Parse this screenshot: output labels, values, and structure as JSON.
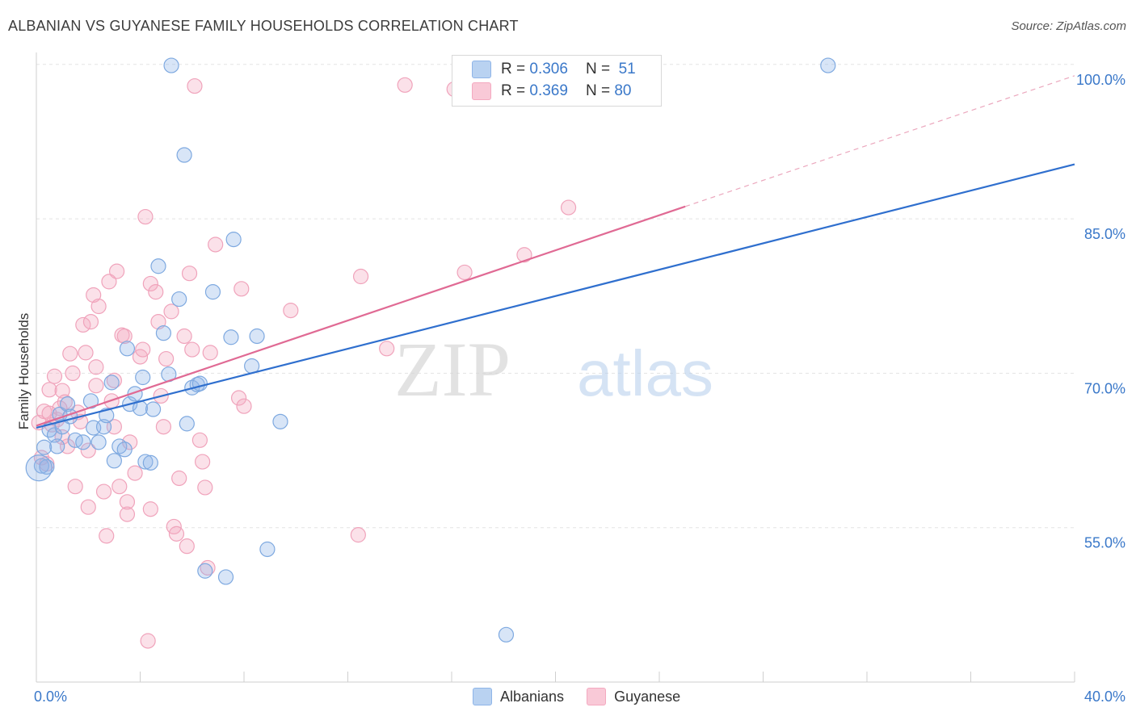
{
  "title": "ALBANIAN VS GUYANESE FAMILY HOUSEHOLDS CORRELATION CHART",
  "source": "Source: ZipAtlas.com",
  "watermark": {
    "zip": "ZIP",
    "atlas": "atlas"
  },
  "legend": {
    "rows": [
      {
        "r_label": "R =",
        "r_value": "0.306",
        "n_label": "N =",
        "n_value": "51"
      },
      {
        "r_label": "R =",
        "r_value": "0.369",
        "n_label": "N =",
        "n_value": "80"
      }
    ]
  },
  "bottom_legend": [
    "Albanians",
    "Guyanese"
  ],
  "chart_data": {
    "type": "scatter",
    "title": "ALBANIAN VS GUYANESE FAMILY HOUSEHOLDS CORRELATION CHART",
    "xlabel": "",
    "ylabel": "Family Households",
    "xlim": [
      0,
      40
    ],
    "ylim": [
      40,
      102
    ],
    "x_tick_labels": [
      "0.0%",
      "40.0%"
    ],
    "y_tick_labels": [
      "55.0%",
      "70.0%",
      "85.0%",
      "100.0%"
    ],
    "y_ticks": [
      55,
      70,
      85,
      100
    ],
    "grid": true,
    "legend_position": "top-center",
    "colors": {
      "Albanians": "#8fb5e8",
      "Guyanese": "#f4a9c0",
      "albanians_line": "#2f6fce",
      "guyanese_line": "#e06a94"
    },
    "series": [
      {
        "name": "Albanians",
        "r": 0.306,
        "n": 51,
        "trend": {
          "x0": 0,
          "y0": 64.7,
          "x1": 40,
          "y1": 90.3
        },
        "points": [
          [
            0.2,
            61
          ],
          [
            0.3,
            62.8
          ],
          [
            0.4,
            60.9
          ],
          [
            0.5,
            64.5
          ],
          [
            0.7,
            64
          ],
          [
            0.8,
            62.9
          ],
          [
            0.9,
            66
          ],
          [
            1.0,
            64.8
          ],
          [
            1.2,
            67
          ],
          [
            1.3,
            65.8
          ],
          [
            1.5,
            63.5
          ],
          [
            1.8,
            63.3
          ],
          [
            2.1,
            67.3
          ],
          [
            2.2,
            64.7
          ],
          [
            2.4,
            63.3
          ],
          [
            2.6,
            64.8
          ],
          [
            2.7,
            65.9
          ],
          [
            2.9,
            69.1
          ],
          [
            3.0,
            61.5
          ],
          [
            3.2,
            62.9
          ],
          [
            3.4,
            62.6
          ],
          [
            3.5,
            72.4
          ],
          [
            3.6,
            67
          ],
          [
            3.8,
            68
          ],
          [
            4.0,
            66.6
          ],
          [
            4.1,
            69.6
          ],
          [
            4.2,
            61.4
          ],
          [
            4.4,
            61.3
          ],
          [
            4.5,
            66.5
          ],
          [
            4.7,
            80.4
          ],
          [
            4.9,
            73.9
          ],
          [
            5.1,
            69.9
          ],
          [
            5.2,
            99.9
          ],
          [
            5.5,
            77.2
          ],
          [
            5.7,
            91.2
          ],
          [
            5.8,
            65.1
          ],
          [
            6.0,
            68.6
          ],
          [
            6.2,
            68.9
          ],
          [
            6.3,
            69
          ],
          [
            6.5,
            50.8
          ],
          [
            6.8,
            77.9
          ],
          [
            7.3,
            50.2
          ],
          [
            7.5,
            73.5
          ],
          [
            7.6,
            83
          ],
          [
            8.3,
            70.7
          ],
          [
            8.5,
            73.6
          ],
          [
            8.9,
            52.9
          ],
          [
            9.4,
            65.3
          ],
          [
            18.1,
            44.6
          ],
          [
            30.5,
            99.9
          ],
          [
            0.1,
            60.8
          ]
        ]
      },
      {
        "name": "Guyanese",
        "r": 0.369,
        "n": 80,
        "trend": {
          "x0": 0,
          "y0": 64.9,
          "x1": 25,
          "y1": 86.2
        },
        "extension": {
          "x0": 25,
          "y0": 86.2,
          "x1": 40,
          "y1": 98.9
        },
        "points": [
          [
            0.1,
            65.2
          ],
          [
            0.2,
            61.8
          ],
          [
            0.3,
            66.3
          ],
          [
            0.4,
            61.2
          ],
          [
            0.5,
            68.4
          ],
          [
            0.6,
            65
          ],
          [
            0.7,
            69.7
          ],
          [
            0.8,
            65.5
          ],
          [
            0.9,
            66.6
          ],
          [
            1.0,
            68.3
          ],
          [
            1.1,
            67.2
          ],
          [
            1.3,
            71.9
          ],
          [
            1.4,
            70
          ],
          [
            1.5,
            59
          ],
          [
            1.6,
            66.2
          ],
          [
            1.7,
            65.3
          ],
          [
            1.8,
            74.7
          ],
          [
            1.9,
            72
          ],
          [
            2.0,
            57
          ],
          [
            2.1,
            75
          ],
          [
            2.2,
            77.6
          ],
          [
            2.3,
            70.6
          ],
          [
            2.3,
            68.8
          ],
          [
            2.4,
            76.5
          ],
          [
            2.6,
            58.5
          ],
          [
            2.7,
            54.2
          ],
          [
            2.8,
            78.9
          ],
          [
            2.9,
            67.3
          ],
          [
            3.0,
            64.8
          ],
          [
            3.1,
            79.9
          ],
          [
            3.2,
            59
          ],
          [
            3.3,
            73.7
          ],
          [
            3.4,
            73.6
          ],
          [
            3.5,
            56.3
          ],
          [
            3.5,
            57.5
          ],
          [
            3.6,
            63.3
          ],
          [
            3.8,
            60.3
          ],
          [
            4.0,
            71.6
          ],
          [
            4.1,
            72.3
          ],
          [
            4.2,
            85.2
          ],
          [
            4.3,
            44
          ],
          [
            4.4,
            78.7
          ],
          [
            4.4,
            56.8
          ],
          [
            4.6,
            77.9
          ],
          [
            4.7,
            75
          ],
          [
            4.8,
            67.8
          ],
          [
            5.0,
            71.4
          ],
          [
            5.2,
            76
          ],
          [
            5.3,
            55.1
          ],
          [
            5.4,
            54.4
          ],
          [
            5.5,
            59.8
          ],
          [
            5.7,
            73.6
          ],
          [
            5.8,
            53.2
          ],
          [
            5.9,
            79.7
          ],
          [
            6.0,
            72.3
          ],
          [
            6.1,
            97.9
          ],
          [
            6.4,
            61.4
          ],
          [
            6.5,
            58.9
          ],
          [
            6.6,
            51.1
          ],
          [
            6.7,
            72
          ],
          [
            6.9,
            82.5
          ],
          [
            7.8,
            67.6
          ],
          [
            7.9,
            78.2
          ],
          [
            8.0,
            66.8
          ],
          [
            9.8,
            76.1
          ],
          [
            12.4,
            54.3
          ],
          [
            12.5,
            79.4
          ],
          [
            13.5,
            72.4
          ],
          [
            14.2,
            98
          ],
          [
            16.1,
            97.6
          ],
          [
            16.5,
            79.8
          ],
          [
            18.8,
            81.5
          ],
          [
            20.5,
            86.1
          ],
          [
            1.2,
            62.9
          ],
          [
            0.5,
            66.1
          ],
          [
            2.0,
            62.5
          ],
          [
            4.9,
            64.8
          ],
          [
            6.3,
            63.5
          ],
          [
            3.0,
            69.3
          ],
          [
            1.0,
            63.8
          ]
        ]
      }
    ]
  }
}
